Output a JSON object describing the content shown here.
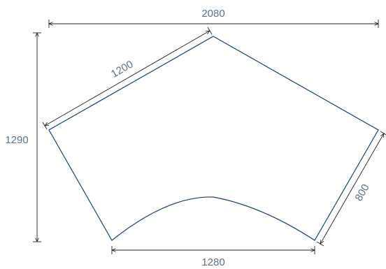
{
  "dimensions": {
    "top_width": "2080",
    "left_edge": "1200",
    "height": "1290",
    "right_edge": "800",
    "bottom_width": "1280"
  },
  "colors": {
    "outline": "#1f3f66",
    "dimension_line": "#222222",
    "dimension_text": "#5c7286"
  }
}
